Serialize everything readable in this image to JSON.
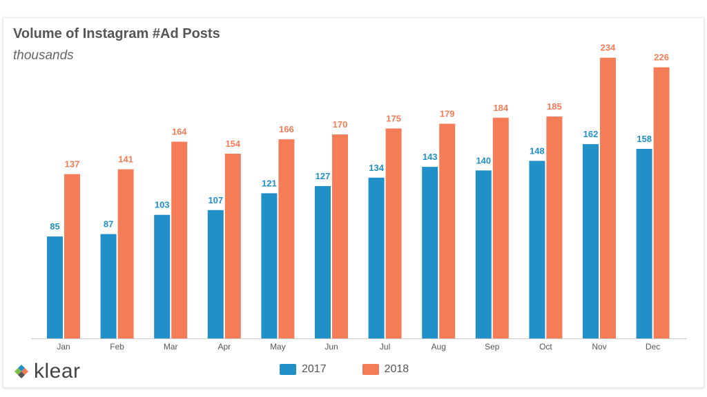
{
  "header": {
    "title": "Volume of Instagram #Ad Posts",
    "subtitle": "thousands"
  },
  "legend": {
    "items": [
      {
        "label": "2017",
        "color": "#2190c8"
      },
      {
        "label": "2018",
        "color": "#f47c56"
      }
    ]
  },
  "logo": {
    "text": "klear",
    "icon": "klear-diamond-logo-icon"
  },
  "colors": {
    "series_2017": "#2190c8",
    "series_2018": "#f47c56",
    "axis": "#cccccc"
  },
  "chart_data": {
    "type": "bar",
    "title": "Volume of Instagram #Ad Posts",
    "subtitle": "thousands",
    "categories": [
      "Jan",
      "Feb",
      "Mar",
      "Apr",
      "May",
      "Jun",
      "Jul",
      "Aug",
      "Sep",
      "Oct",
      "Nov",
      "Dec"
    ],
    "series": [
      {
        "name": "2017",
        "values": [
          85,
          87,
          103,
          107,
          121,
          127,
          134,
          143,
          140,
          148,
          162,
          158
        ]
      },
      {
        "name": "2018",
        "values": [
          137,
          141,
          164,
          154,
          166,
          170,
          175,
          179,
          184,
          185,
          234,
          226
        ]
      }
    ],
    "ylim": [
      0,
      235
    ],
    "grid": false,
    "legend_position": "bottom-center",
    "data_labels": true
  }
}
